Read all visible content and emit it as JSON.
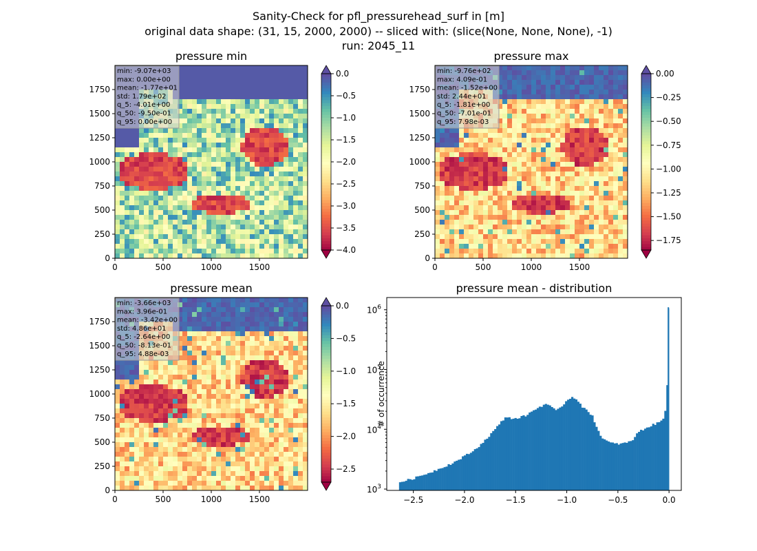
{
  "figure": {
    "suptitle": [
      "Sanity-Check for pfl_pressurehead_surf in [m]",
      "original data shape: (31, 15, 2000, 2000) -- sliced with: (slice(None, None, None), -1)",
      "run: 2045_11"
    ]
  },
  "chart_data": [
    {
      "type": "heatmap",
      "title": "pressure min",
      "colormap": "Spectral",
      "extend": "both",
      "xlim": [
        0,
        2000
      ],
      "ylim": [
        0,
        2000
      ],
      "xticks": [
        0,
        500,
        1000,
        1500
      ],
      "yticks": [
        0,
        250,
        500,
        750,
        1000,
        1250,
        1500,
        1750
      ],
      "clim": [
        -4.0,
        0.0
      ],
      "cbar_ticks": [
        "0.0",
        "-0.5",
        "-1.0",
        "-1.5",
        "-2.0",
        "-2.5",
        "-3.0",
        "-3.5",
        "-4.0"
      ],
      "cbar_tick_values": [
        0.0,
        -0.5,
        -1.0,
        -1.5,
        -2.0,
        -2.5,
        -3.0,
        -3.5,
        -4.0
      ],
      "stats": [
        "min: -9.07e+03",
        "max: 0.00e+00",
        "mean: -1.77e+01",
        "std: 1.79e+02",
        "q_5: -4.01e+00",
        "q_50: -9.50e-01",
        "q_95: 0.00e+00"
      ]
    },
    {
      "type": "heatmap",
      "title": "pressure max",
      "colormap": "Spectral",
      "extend": "both",
      "xlim": [
        0,
        2000
      ],
      "ylim": [
        0,
        2000
      ],
      "xticks": [
        0,
        500,
        1000,
        1500
      ],
      "yticks": [
        0,
        250,
        500,
        750,
        1000,
        1250,
        1500,
        1750
      ],
      "clim": [
        -1.85,
        0.0
      ],
      "cbar_ticks": [
        "0.00",
        "-0.25",
        "-0.50",
        "-0.75",
        "-1.00",
        "-1.25",
        "-1.50",
        "-1.75"
      ],
      "cbar_tick_values": [
        0.0,
        -0.25,
        -0.5,
        -0.75,
        -1.0,
        -1.25,
        -1.5,
        -1.75
      ],
      "stats": [
        "min: -9.76e+02",
        "max: 4.09e-01",
        "mean: -1.52e+00",
        "std: 2.44e+01",
        "q_5: -1.81e+00",
        "q_50: -7.01e-01",
        "q_95: 7.98e-03"
      ]
    },
    {
      "type": "heatmap",
      "title": "pressure mean",
      "colormap": "Spectral",
      "extend": "both",
      "xlim": [
        0,
        2000
      ],
      "ylim": [
        0,
        2000
      ],
      "xticks": [
        0,
        500,
        1000,
        1500
      ],
      "yticks": [
        0,
        250,
        500,
        750,
        1000,
        1250,
        1500,
        1750
      ],
      "clim": [
        -2.7,
        0.0
      ],
      "cbar_ticks": [
        "0.0",
        "-0.5",
        "-1.0",
        "-1.5",
        "-2.0",
        "-2.5"
      ],
      "cbar_tick_values": [
        0.0,
        -0.5,
        -1.0,
        -1.5,
        -2.0,
        -2.5
      ],
      "stats": [
        "min: -3.66e+03",
        "max: 3.96e-01",
        "mean: -3.42e+00",
        "std: 4.86e+01",
        "q_5: -2.64e+00",
        "q_50: -8.13e-01",
        "q_95: 4.88e-03"
      ]
    },
    {
      "type": "bar",
      "title": "pressure mean - distribution",
      "xlabel": "",
      "ylabel": "# of occurrence",
      "yscale": "log",
      "xlim": [
        -2.76,
        0.12
      ],
      "ylim": [
        950,
        1600000
      ],
      "xticks": [
        -2.5,
        -2.0,
        -1.5,
        -1.0,
        -0.5,
        0.0
      ],
      "xtick_labels": [
        "−2.5",
        "−2.0",
        "−1.5",
        "−1.0",
        "−0.5",
        "0.0"
      ],
      "yticks": [
        1000,
        10000,
        100000,
        1000000
      ],
      "ytick_labels": [
        [
          "10",
          "3"
        ],
        [
          "10",
          "4"
        ],
        [
          "10",
          "5"
        ],
        [
          "10",
          "6"
        ]
      ],
      "color": "#1f77b4",
      "bin_edges_start": -2.64,
      "bin_width": 0.0198,
      "counts_anchor_x": [
        -2.64,
        -2.5,
        -2.3,
        -2.1,
        -1.9,
        -1.8,
        -1.7,
        -1.6,
        -1.5,
        -1.4,
        -1.3,
        -1.2,
        -1.1,
        -1.0,
        -0.95,
        -0.9,
        -0.85,
        -0.8,
        -0.75,
        -0.7,
        -0.65,
        -0.6,
        -0.55,
        -0.5,
        -0.45,
        -0.4,
        -0.35,
        -0.3,
        -0.25,
        -0.2,
        -0.15,
        -0.1,
        -0.05,
        -0.02,
        0.0
      ],
      "counts_anchor_y": [
        1300,
        1500,
        2000,
        2800,
        4500,
        6500,
        10000,
        16000,
        15000,
        17000,
        22000,
        27000,
        20000,
        30000,
        35000,
        32000,
        24000,
        20000,
        17000,
        10000,
        7000,
        6200,
        5800,
        5700,
        5800,
        6000,
        6800,
        9000,
        10000,
        11000,
        12000,
        13000,
        15000,
        30000,
        1100000
      ]
    }
  ],
  "colors": {
    "axis": "#000000",
    "stats_box_fill": "#d3d3d3",
    "histogram": "#1f77b4",
    "spectral_stops": [
      "#9e0142",
      "#d53e4f",
      "#f46d43",
      "#fdae61",
      "#fee08b",
      "#ffffbf",
      "#e6f598",
      "#abdda4",
      "#66c2a5",
      "#3288bd",
      "#5e4fa2"
    ]
  }
}
